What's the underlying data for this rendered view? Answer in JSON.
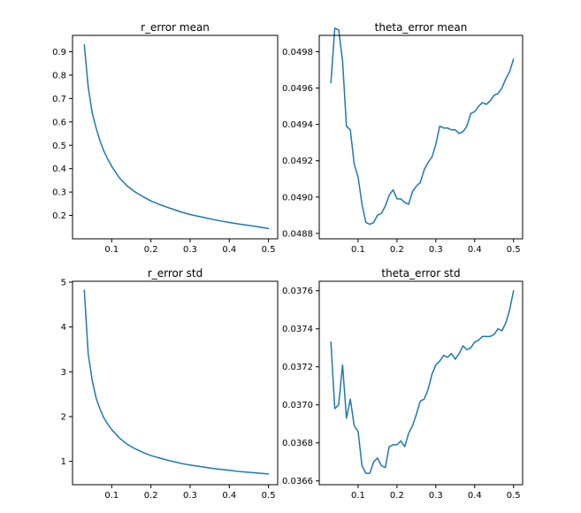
{
  "figure": {
    "background": "#ffffff",
    "line_color": "#1f77b4"
  },
  "chart_data": [
    {
      "type": "line",
      "title": "r_error mean",
      "xlabel": "",
      "ylabel": "",
      "xlim": [
        0.0,
        0.5234
      ],
      "ylim": [
        0.1,
        0.97
      ],
      "xticks": [
        0.1,
        0.2,
        0.3,
        0.4,
        0.5
      ],
      "yticks": [
        0.2,
        0.3,
        0.4,
        0.5,
        0.6,
        0.7,
        0.8,
        0.9
      ],
      "grid": false,
      "series": [
        {
          "x": [
            0.03,
            0.04,
            0.05,
            0.06,
            0.07,
            0.08,
            0.09,
            0.1,
            0.12,
            0.14,
            0.16,
            0.18,
            0.2,
            0.22,
            0.25,
            0.28,
            0.3,
            0.33,
            0.36,
            0.4,
            0.43,
            0.46,
            0.5
          ],
          "values": [
            0.93,
            0.75,
            0.64,
            0.575,
            0.52,
            0.475,
            0.44,
            0.41,
            0.36,
            0.325,
            0.3,
            0.28,
            0.262,
            0.248,
            0.23,
            0.213,
            0.204,
            0.193,
            0.182,
            0.17,
            0.162,
            0.155,
            0.144
          ]
        }
      ]
    },
    {
      "type": "line",
      "title": "theta_error mean",
      "xlabel": "",
      "ylabel": "",
      "xlim": [
        0.0,
        0.5234
      ],
      "ylim": [
        0.04877,
        0.04989
      ],
      "xticks": [
        0.1,
        0.2,
        0.3,
        0.4,
        0.5
      ],
      "yticks": [
        0.0488,
        0.049,
        0.0492,
        0.0494,
        0.0496,
        0.0498
      ],
      "ytick_labels": [
        "0.0488",
        "0.0490",
        "0.0492",
        "0.0494",
        "0.0496",
        "0.0498"
      ],
      "grid": false,
      "series": [
        {
          "x": [
            0.03,
            0.04,
            0.05,
            0.06,
            0.07,
            0.08,
            0.09,
            0.1,
            0.11,
            0.12,
            0.13,
            0.14,
            0.15,
            0.16,
            0.17,
            0.18,
            0.19,
            0.2,
            0.21,
            0.22,
            0.23,
            0.24,
            0.25,
            0.26,
            0.27,
            0.28,
            0.29,
            0.3,
            0.31,
            0.32,
            0.33,
            0.34,
            0.35,
            0.36,
            0.37,
            0.38,
            0.39,
            0.4,
            0.41,
            0.42,
            0.43,
            0.44,
            0.45,
            0.46,
            0.47,
            0.48,
            0.49,
            0.5
          ],
          "values": [
            0.04963,
            0.04993,
            0.04992,
            0.04975,
            0.04939,
            0.04937,
            0.04918,
            0.04911,
            0.04896,
            0.04886,
            0.04885,
            0.04886,
            0.0489,
            0.04891,
            0.04895,
            0.04901,
            0.04904,
            0.04899,
            0.04899,
            0.04897,
            0.04896,
            0.04903,
            0.04906,
            0.04908,
            0.04915,
            0.04919,
            0.04922,
            0.04929,
            0.04939,
            0.04938,
            0.04938,
            0.04937,
            0.04937,
            0.04935,
            0.04936,
            0.04939,
            0.04946,
            0.04947,
            0.0495,
            0.04952,
            0.04951,
            0.04953,
            0.04956,
            0.04957,
            0.0496,
            0.04965,
            0.04969,
            0.04976
          ]
        }
      ]
    },
    {
      "type": "line",
      "title": "r_error std",
      "xlabel": "",
      "ylabel": "",
      "xlim": [
        0.0,
        0.5234
      ],
      "ylim": [
        0.48,
        5.02
      ],
      "xticks": [
        0.1,
        0.2,
        0.3,
        0.4,
        0.5
      ],
      "yticks": [
        1,
        2,
        3,
        4,
        5
      ],
      "grid": false,
      "series": [
        {
          "x": [
            0.03,
            0.04,
            0.05,
            0.06,
            0.07,
            0.08,
            0.09,
            0.1,
            0.12,
            0.14,
            0.16,
            0.18,
            0.2,
            0.22,
            0.25,
            0.28,
            0.3,
            0.33,
            0.36,
            0.4,
            0.43,
            0.46,
            0.5
          ],
          "values": [
            4.82,
            3.4,
            2.82,
            2.42,
            2.17,
            1.97,
            1.83,
            1.71,
            1.52,
            1.38,
            1.28,
            1.2,
            1.13,
            1.08,
            1.01,
            0.95,
            0.92,
            0.88,
            0.84,
            0.8,
            0.77,
            0.75,
            0.72
          ]
        }
      ]
    },
    {
      "type": "line",
      "title": "theta_error std",
      "xlabel": "",
      "ylabel": "",
      "xlim": [
        0.0,
        0.5234
      ],
      "ylim": [
        0.03658,
        0.03765
      ],
      "xticks": [
        0.1,
        0.2,
        0.3,
        0.4,
        0.5
      ],
      "yticks": [
        0.0366,
        0.0368,
        0.037,
        0.0372,
        0.0374,
        0.0376
      ],
      "ytick_labels": [
        "0.0366",
        "0.0368",
        "0.0370",
        "0.0372",
        "0.0374",
        "0.0376"
      ],
      "grid": false,
      "series": [
        {
          "x": [
            0.03,
            0.04,
            0.05,
            0.06,
            0.07,
            0.08,
            0.09,
            0.1,
            0.11,
            0.12,
            0.13,
            0.14,
            0.15,
            0.16,
            0.17,
            0.18,
            0.19,
            0.2,
            0.21,
            0.22,
            0.23,
            0.24,
            0.25,
            0.26,
            0.27,
            0.28,
            0.29,
            0.3,
            0.31,
            0.32,
            0.33,
            0.34,
            0.35,
            0.36,
            0.37,
            0.38,
            0.39,
            0.4,
            0.41,
            0.42,
            0.43,
            0.44,
            0.45,
            0.46,
            0.47,
            0.48,
            0.49,
            0.5
          ],
          "values": [
            0.03733,
            0.03698,
            0.037,
            0.03721,
            0.03693,
            0.03703,
            0.03689,
            0.03686,
            0.03668,
            0.03664,
            0.03664,
            0.0367,
            0.03672,
            0.03668,
            0.03667,
            0.03678,
            0.03679,
            0.03679,
            0.03681,
            0.03678,
            0.03685,
            0.03689,
            0.03695,
            0.03702,
            0.03703,
            0.03708,
            0.03716,
            0.03721,
            0.03723,
            0.03726,
            0.03725,
            0.03727,
            0.03724,
            0.03727,
            0.03731,
            0.03729,
            0.0373,
            0.03733,
            0.03734,
            0.03736,
            0.03736,
            0.03736,
            0.03737,
            0.0374,
            0.03739,
            0.03743,
            0.0375,
            0.0376
          ]
        }
      ]
    }
  ]
}
